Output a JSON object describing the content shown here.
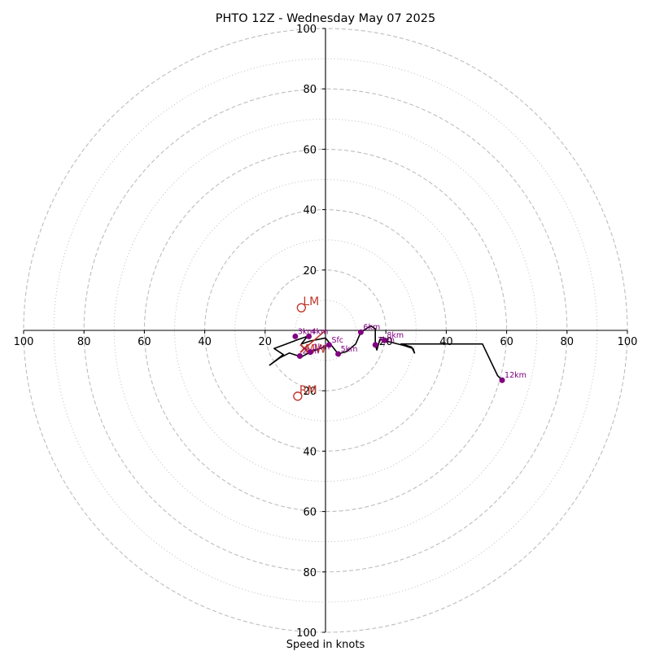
{
  "chart_data": {
    "type": "hodograph",
    "title": "PHTO 12Z - Wednesday May 07 2025",
    "xlabel": "Speed in knots",
    "range": [
      -100,
      100
    ],
    "ring_major": [
      20,
      40,
      60,
      80,
      100
    ],
    "ring_minor": [
      10,
      30,
      50,
      70,
      90
    ],
    "x_tick_labels": [
      "100",
      "80",
      "60",
      "40",
      "20",
      "20",
      "40",
      "60",
      "80",
      "100"
    ],
    "y_tick_labels": [
      "100",
      "80",
      "60",
      "40",
      "20",
      "20",
      "40",
      "60",
      "80",
      "100"
    ],
    "trace_color": "#000000",
    "height_color": "#800080",
    "motion_color": "#c0392b",
    "grid_color": "#bdbdbd",
    "profile": [
      [
        1.2,
        -4.8
      ],
      [
        -5,
        -7.2
      ],
      [
        -8,
        -8.8
      ],
      [
        -12,
        -7.5
      ],
      [
        -15,
        -9
      ],
      [
        -18.5,
        -11.5
      ],
      [
        -14,
        -8
      ],
      [
        -17,
        -6
      ],
      [
        -13,
        -4.5
      ],
      [
        -9,
        -3
      ],
      [
        -6,
        -2
      ],
      [
        -8,
        -4.5
      ],
      [
        -5,
        -3.5
      ],
      [
        0,
        -2.5
      ],
      [
        4.2,
        -7.8
      ],
      [
        7,
        -7
      ],
      [
        10,
        -4.5
      ],
      [
        11.7,
        -0.6
      ],
      [
        15,
        1.5
      ],
      [
        16.5,
        0.5
      ],
      [
        16.5,
        -4.8
      ],
      [
        17,
        -6.5
      ],
      [
        18,
        -3
      ],
      [
        20,
        -3.5
      ],
      [
        26,
        -5
      ],
      [
        29,
        -6
      ],
      [
        29.5,
        -7.5
      ],
      [
        28.5,
        -5.5
      ],
      [
        25,
        -4.5
      ],
      [
        48,
        -4.5
      ],
      [
        52,
        -4.5
      ],
      [
        57,
        -15
      ],
      [
        58.5,
        -16.5
      ]
    ],
    "height_markers": [
      {
        "label": "Sfc",
        "u": 1.2,
        "v": -4.8
      },
      {
        "label": "1km",
        "u": -5,
        "v": -7.2
      },
      {
        "label": "2km",
        "u": -8.5,
        "v": -8.5
      },
      {
        "label": "3km",
        "u": -10,
        "v": -2
      },
      {
        "label": "4km",
        "u": -5.5,
        "v": -2
      },
      {
        "label": "5km",
        "u": 4.2,
        "v": -7.8
      },
      {
        "label": "6km",
        "u": 11.7,
        "v": -0.6
      },
      {
        "label": "7km",
        "u": 16.5,
        "v": -4.8
      },
      {
        "label": "8km",
        "u": 19.5,
        "v": -3.3
      },
      {
        "label": "12km",
        "u": 58.5,
        "v": -16.5
      }
    ],
    "storm_motion": [
      {
        "label": "LM",
        "u": -8,
        "v": 7.5
      },
      {
        "label": "RM",
        "u": -9.2,
        "v": -21.8
      },
      {
        "label": "MW",
        "u": -7,
        "v": -6
      }
    ],
    "mean_wind_vector": {
      "from": [
        0,
        0
      ],
      "to": [
        -7.5,
        -6.5
      ]
    }
  }
}
